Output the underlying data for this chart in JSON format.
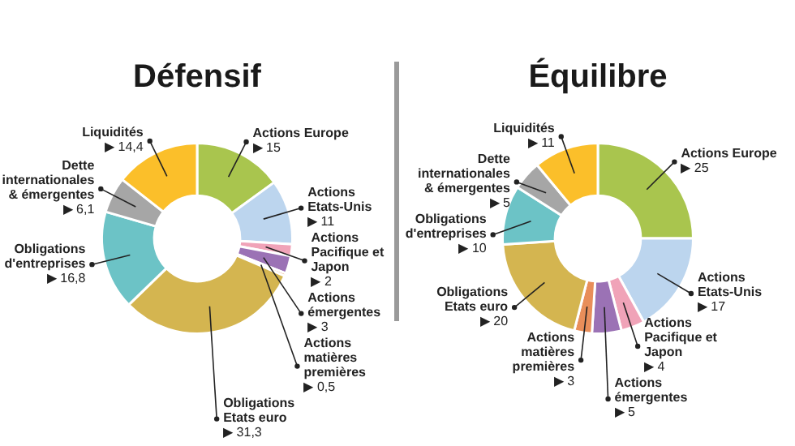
{
  "chart_data": [
    {
      "type": "donut",
      "title": "Défensif",
      "categories": [
        "Actions Europe",
        "Actions Etats-Unis",
        "Actions Pacifique et Japon",
        "Actions émergentes",
        "Actions matières premières",
        "Obligations Etats euro",
        "Obligations d'entreprises",
        "Dette internationales & émergentes",
        "Liquidités"
      ],
      "values": [
        15,
        11,
        2,
        3,
        0.5,
        31.3,
        16.8,
        6.1,
        14.4
      ],
      "value_labels": [
        "▶ 15",
        "▶ 11",
        "▶ 2",
        "▶ 3",
        "▶ 0,5",
        "▶ 31,3",
        "▶ 16,8",
        "▶ 6,1",
        "▶ 14,4"
      ],
      "colors": [
        "#a9c54e",
        "#bcd5ee",
        "#f0a3b8",
        "#9b72b5",
        "#e88e5a",
        "#d4b550",
        "#6cc3c6",
        "#a6a6a6",
        "#fbbf2a"
      ]
    },
    {
      "type": "donut",
      "title": "Équilibre",
      "categories": [
        "Actions Europe",
        "Actions Etats-Unis",
        "Actions Pacifique et Japon",
        "Actions émergentes",
        "Actions matières premières",
        "Obligations Etats euro",
        "Obligations d'entreprises",
        "Dette internationales & émergentes",
        "Liquidités"
      ],
      "values": [
        25,
        17,
        4,
        5,
        3,
        20,
        10,
        5,
        11
      ],
      "value_labels": [
        "▶ 25",
        "▶ 17",
        "▶ 4",
        "▶ 5",
        "▶ 3",
        "▶ 20",
        "▶ 10",
        "▶ 5",
        "▶ 11"
      ],
      "colors": [
        "#a9c54e",
        "#bcd5ee",
        "#f0a3b8",
        "#9b72b5",
        "#e88e5a",
        "#d4b550",
        "#6cc3c6",
        "#a6a6a6",
        "#fbbf2a"
      ]
    }
  ]
}
